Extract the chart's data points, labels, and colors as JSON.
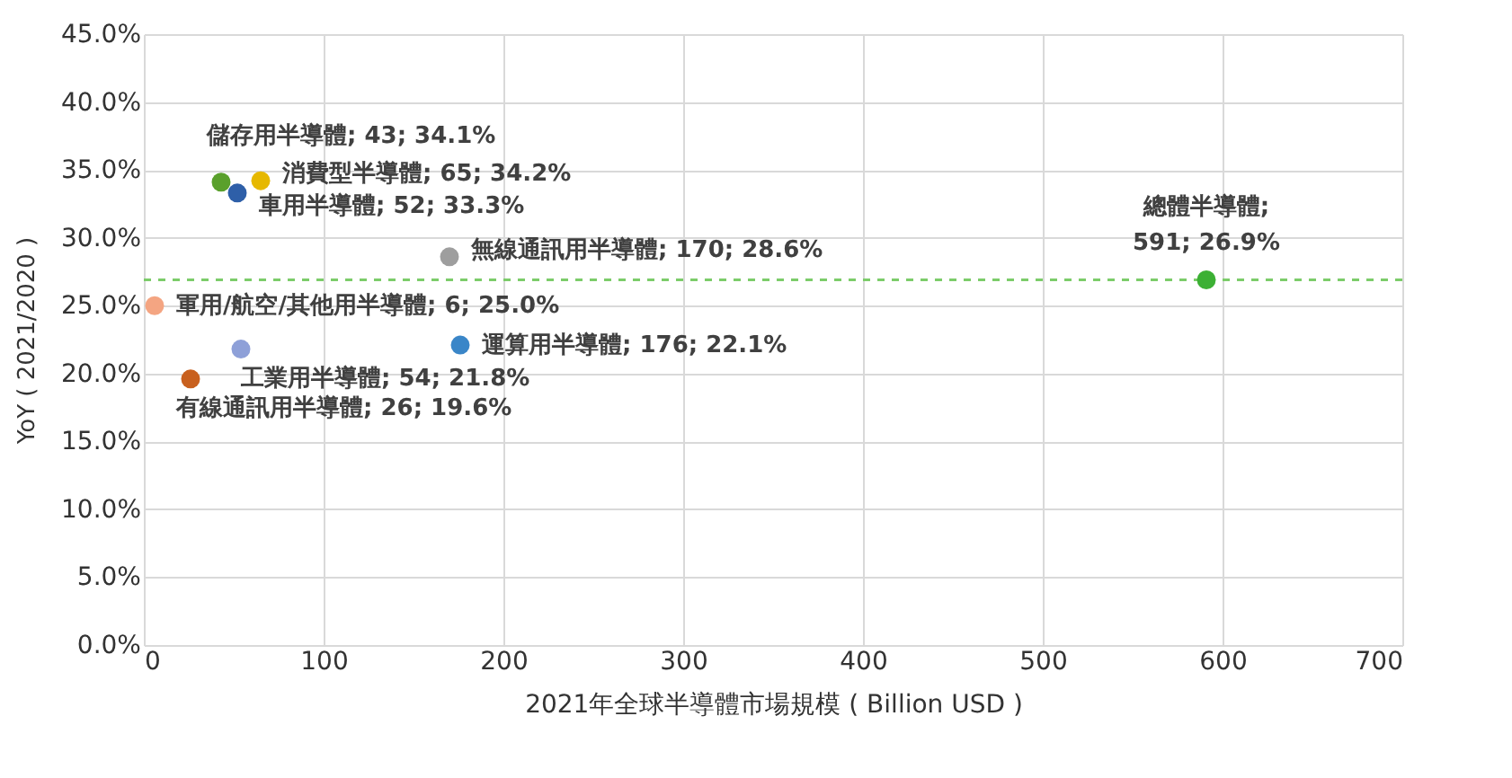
{
  "chart_data": {
    "type": "scatter",
    "xlabel": "2021年全球半導體市場規模 ( Billion USD )",
    "ylabel": "YoY ( 2021/2020 )",
    "xlim": [
      0,
      700
    ],
    "xticks": [
      0,
      100,
      200,
      300,
      400,
      500,
      600,
      700
    ],
    "ylim": [
      0,
      45
    ],
    "yticks": [
      {
        "value": 0,
        "label": "0.0%"
      },
      {
        "value": 5,
        "label": "5.0%"
      },
      {
        "value": 10,
        "label": "10.0%"
      },
      {
        "value": 15,
        "label": "15.0%"
      },
      {
        "value": 20,
        "label": "20.0%"
      },
      {
        "value": 25,
        "label": "25.0%"
      },
      {
        "value": 30,
        "label": "30.0%"
      },
      {
        "value": 35,
        "label": "35.0%"
      },
      {
        "value": 40,
        "label": "40.0%"
      },
      {
        "value": 45,
        "label": "45.0%"
      }
    ],
    "grid": true,
    "marker": "circle",
    "ref_lines": [
      {
        "axis": "y",
        "value": 26.9,
        "color": "#7ccc6a",
        "line_style": "dashed"
      }
    ],
    "series": [
      {
        "x": [
          43
        ],
        "values": [
          34.1
        ],
        "color": "#5aa02c",
        "value_labels": [
          "儲存用半導體; 43; 34.1%"
        ]
      },
      {
        "x": [
          65
        ],
        "values": [
          34.2
        ],
        "color": "#e6b800",
        "value_labels": [
          "消費型半導體; 65; 34.2%"
        ]
      },
      {
        "x": [
          52
        ],
        "values": [
          33.3
        ],
        "color": "#2e5fa8",
        "value_labels": [
          "車用半導體; 52; 33.3%"
        ]
      },
      {
        "x": [
          170
        ],
        "values": [
          28.6
        ],
        "color": "#9e9e9e",
        "value_labels": [
          "無線通訊用半導體; 170; 28.6%"
        ]
      },
      {
        "x": [
          6
        ],
        "values": [
          25.0
        ],
        "color": "#f4a582",
        "value_labels": [
          "軍用/航空/其他用半導體; 6; 25.0%"
        ]
      },
      {
        "x": [
          54
        ],
        "values": [
          21.8
        ],
        "color": "#8ea0d8",
        "value_labels": [
          "工業用半導體; 54; 21.8%"
        ]
      },
      {
        "x": [
          176
        ],
        "values": [
          22.1
        ],
        "color": "#3a86c8",
        "value_labels": [
          "運算用半導體; 176; 22.1%"
        ]
      },
      {
        "x": [
          26
        ],
        "values": [
          19.6
        ],
        "color": "#c8601e",
        "value_labels": [
          "有線通訊用半導體; 26; 19.6%"
        ]
      },
      {
        "x": [
          591
        ],
        "values": [
          26.9
        ],
        "color": "#3cb034",
        "value_labels": [
          "總體半導體;\n591; 26.9%"
        ]
      }
    ]
  }
}
